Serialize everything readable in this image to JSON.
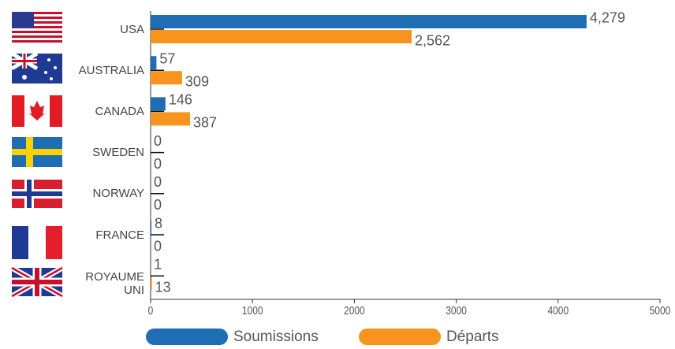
{
  "chart_data": {
    "type": "bar",
    "orientation": "horizontal",
    "categories": [
      "USA",
      "AUSTRALIA",
      "CANADA",
      "SWEDEN",
      "NORWAY",
      "FRANCE",
      "ROYAUME UNI"
    ],
    "series": [
      {
        "name": "Soumissions",
        "color": "#1f6db3",
        "values": [
          4279,
          57,
          146,
          0,
          0,
          8,
          1
        ],
        "value_labels": [
          "4,279",
          "57",
          "146",
          "0",
          "0",
          "8",
          "1"
        ]
      },
      {
        "name": "Départs",
        "color": "#f7941d",
        "values": [
          2562,
          309,
          387,
          0,
          0,
          0,
          13
        ],
        "value_labels": [
          "2,562",
          "309",
          "387",
          "0",
          "0",
          "0",
          "13"
        ]
      }
    ],
    "xlim": [
      0,
      5000
    ],
    "xticks": [
      0,
      1000,
      2000,
      3000,
      4000,
      5000
    ]
  }
}
